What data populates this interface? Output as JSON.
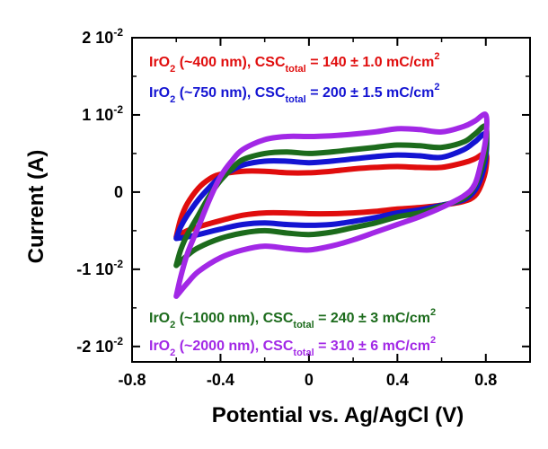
{
  "chart_data": {
    "type": "line",
    "title": "",
    "xlabel": "Potential vs. Ag/AgCl (V)",
    "ylabel": "Current (A)",
    "xlim": [
      -0.8,
      1.0
    ],
    "ylim": [
      -0.022,
      0.02
    ],
    "x_ticks": [
      -0.8,
      -0.4,
      0,
      0.4,
      0.8
    ],
    "x_tick_labels": [
      "-0.8",
      "-0.4",
      "0",
      "0.4",
      "0.8"
    ],
    "y_ticks": [
      0.02,
      0.01,
      0,
      -0.01,
      -0.02
    ],
    "y_tick_labels": [
      {
        "mantissa": "2 10",
        "exp": "-2"
      },
      {
        "mantissa": "1 10",
        "exp": "-2"
      },
      {
        "mantissa": "0",
        "exp": ""
      },
      {
        "mantissa": "-1 10",
        "exp": "-2"
      },
      {
        "mantissa": "-2 10",
        "exp": "-2"
      }
    ],
    "grid": false,
    "series": [
      {
        "name": "IrO2 (~400 nm)",
        "color": "#e00d0d",
        "label_pre": "IrO",
        "label_sub": "2",
        "label_mid": " (~400 nm), CSC",
        "label_sub2": "total",
        "label_post": " = 140 ± 1.0 mC/cm",
        "label_sup": "2",
        "position": "top-left",
        "loop": [
          [
            -0.6,
            -0.0058
          ],
          [
            -0.58,
            -0.0035
          ],
          [
            -0.55,
            -0.0015
          ],
          [
            -0.5,
            0.0005
          ],
          [
            -0.45,
            0.0017
          ],
          [
            -0.4,
            0.0023
          ],
          [
            -0.3,
            0.0027
          ],
          [
            -0.2,
            0.0027
          ],
          [
            -0.1,
            0.0025
          ],
          [
            0.0,
            0.0025
          ],
          [
            0.1,
            0.0027
          ],
          [
            0.2,
            0.003
          ],
          [
            0.3,
            0.0032
          ],
          [
            0.4,
            0.0033
          ],
          [
            0.5,
            0.0032
          ],
          [
            0.6,
            0.0032
          ],
          [
            0.7,
            0.0038
          ],
          [
            0.75,
            0.0043
          ],
          [
            0.8,
            0.005
          ],
          [
            0.8,
            0.003
          ],
          [
            0.78,
            0.001
          ],
          [
            0.75,
            -0.0005
          ],
          [
            0.7,
            -0.0012
          ],
          [
            0.6,
            -0.0017
          ],
          [
            0.5,
            -0.002
          ],
          [
            0.4,
            -0.0022
          ],
          [
            0.3,
            -0.0025
          ],
          [
            0.2,
            -0.0027
          ],
          [
            0.1,
            -0.0028
          ],
          [
            0.0,
            -0.0028
          ],
          [
            -0.1,
            -0.0027
          ],
          [
            -0.2,
            -0.0027
          ],
          [
            -0.3,
            -0.003
          ],
          [
            -0.4,
            -0.0037
          ],
          [
            -0.5,
            -0.0045
          ],
          [
            -0.55,
            -0.005
          ],
          [
            -0.6,
            -0.0058
          ]
        ]
      },
      {
        "name": "IrO2 (~750 nm)",
        "color": "#1414d2",
        "label_pre": "IrO",
        "label_sub": "2",
        "label_mid": " (~750 nm), CSC",
        "label_sub2": "total",
        "label_post": " = 200 ± 1.5 mC/cm",
        "label_sup": "2",
        "position": "top-left",
        "loop": [
          [
            -0.6,
            -0.006
          ],
          [
            -0.58,
            -0.0045
          ],
          [
            -0.55,
            -0.003
          ],
          [
            -0.5,
            -0.001
          ],
          [
            -0.45,
            0.0006
          ],
          [
            -0.4,
            0.002
          ],
          [
            -0.35,
            0.0028
          ],
          [
            -0.3,
            0.0035
          ],
          [
            -0.2,
            0.004
          ],
          [
            -0.1,
            0.004
          ],
          [
            0.0,
            0.0038
          ],
          [
            0.1,
            0.004
          ],
          [
            0.2,
            0.0043
          ],
          [
            0.3,
            0.0046
          ],
          [
            0.4,
            0.0048
          ],
          [
            0.5,
            0.0047
          ],
          [
            0.6,
            0.0045
          ],
          [
            0.7,
            0.0055
          ],
          [
            0.75,
            0.0065
          ],
          [
            0.8,
            0.0075
          ],
          [
            0.8,
            0.0045
          ],
          [
            0.78,
            0.002
          ],
          [
            0.75,
            0.0002
          ],
          [
            0.7,
            -0.001
          ],
          [
            0.6,
            -0.0017
          ],
          [
            0.5,
            -0.0023
          ],
          [
            0.4,
            -0.0027
          ],
          [
            0.3,
            -0.0033
          ],
          [
            0.2,
            -0.0038
          ],
          [
            0.1,
            -0.0042
          ],
          [
            0.0,
            -0.0043
          ],
          [
            -0.1,
            -0.0042
          ],
          [
            -0.2,
            -0.004
          ],
          [
            -0.3,
            -0.0042
          ],
          [
            -0.4,
            -0.0048
          ],
          [
            -0.5,
            -0.0055
          ],
          [
            -0.55,
            -0.0058
          ],
          [
            -0.6,
            -0.006
          ]
        ]
      },
      {
        "name": "IrO2 (~1000 nm)",
        "color": "#1c6b1c",
        "label_pre": "IrO",
        "label_sub": "2",
        "label_mid": " (~1000 nm), CSC",
        "label_sub2": "total",
        "label_post": " = 240 ± 3 mC/cm",
        "label_sup": "2",
        "position": "bottom-left",
        "loop": [
          [
            -0.6,
            -0.0095
          ],
          [
            -0.58,
            -0.0075
          ],
          [
            -0.55,
            -0.0055
          ],
          [
            -0.5,
            -0.003
          ],
          [
            -0.45,
            -0.0005
          ],
          [
            -0.4,
            0.0015
          ],
          [
            -0.35,
            0.003
          ],
          [
            -0.3,
            0.0042
          ],
          [
            -0.2,
            0.005
          ],
          [
            -0.1,
            0.0052
          ],
          [
            0.0,
            0.005
          ],
          [
            0.1,
            0.0052
          ],
          [
            0.2,
            0.0055
          ],
          [
            0.3,
            0.0058
          ],
          [
            0.4,
            0.0061
          ],
          [
            0.5,
            0.006
          ],
          [
            0.6,
            0.0058
          ],
          [
            0.7,
            0.0065
          ],
          [
            0.75,
            0.0075
          ],
          [
            0.8,
            0.0085
          ],
          [
            0.8,
            0.0055
          ],
          [
            0.78,
            0.003
          ],
          [
            0.75,
            0.0008
          ],
          [
            0.7,
            -0.0008
          ],
          [
            0.6,
            -0.0018
          ],
          [
            0.5,
            -0.0027
          ],
          [
            0.4,
            -0.0032
          ],
          [
            0.3,
            -0.004
          ],
          [
            0.2,
            -0.0046
          ],
          [
            0.1,
            -0.0052
          ],
          [
            0.0,
            -0.0055
          ],
          [
            -0.1,
            -0.0053
          ],
          [
            -0.2,
            -0.005
          ],
          [
            -0.3,
            -0.0053
          ],
          [
            -0.4,
            -0.006
          ],
          [
            -0.5,
            -0.0072
          ],
          [
            -0.55,
            -0.0082
          ],
          [
            -0.6,
            -0.0095
          ]
        ]
      },
      {
        "name": "IrO2 (~2000 nm)",
        "color": "#a228e6",
        "label_pre": "IrO",
        "label_sub": "2",
        "label_mid": " (~2000 nm), CSC",
        "label_sub2": "total",
        "label_post": " = 310 ± 6 mC/cm",
        "label_sup": "2",
        "position": "bottom-left",
        "loop": [
          [
            -0.6,
            -0.0135
          ],
          [
            -0.58,
            -0.011
          ],
          [
            -0.55,
            -0.008
          ],
          [
            -0.5,
            -0.0045
          ],
          [
            -0.45,
            -0.001
          ],
          [
            -0.4,
            0.002
          ],
          [
            -0.35,
            0.004
          ],
          [
            -0.3,
            0.0055
          ],
          [
            -0.2,
            0.0068
          ],
          [
            -0.1,
            0.0072
          ],
          [
            0.0,
            0.0072
          ],
          [
            0.1,
            0.0073
          ],
          [
            0.2,
            0.0075
          ],
          [
            0.3,
            0.0078
          ],
          [
            0.4,
            0.0082
          ],
          [
            0.5,
            0.0081
          ],
          [
            0.6,
            0.0078
          ],
          [
            0.7,
            0.0085
          ],
          [
            0.75,
            0.0092
          ],
          [
            0.8,
            0.01
          ],
          [
            0.8,
            0.007
          ],
          [
            0.78,
            0.004
          ],
          [
            0.75,
            0.001
          ],
          [
            0.7,
            -0.0005
          ],
          [
            0.6,
            -0.002
          ],
          [
            0.5,
            -0.0032
          ],
          [
            0.4,
            -0.0042
          ],
          [
            0.3,
            -0.0052
          ],
          [
            0.2,
            -0.0062
          ],
          [
            0.1,
            -0.007
          ],
          [
            0.0,
            -0.0075
          ],
          [
            -0.1,
            -0.0073
          ],
          [
            -0.2,
            -0.007
          ],
          [
            -0.3,
            -0.0075
          ],
          [
            -0.4,
            -0.0085
          ],
          [
            -0.5,
            -0.0103
          ],
          [
            -0.55,
            -0.0118
          ],
          [
            -0.6,
            -0.0135
          ]
        ]
      }
    ]
  }
}
